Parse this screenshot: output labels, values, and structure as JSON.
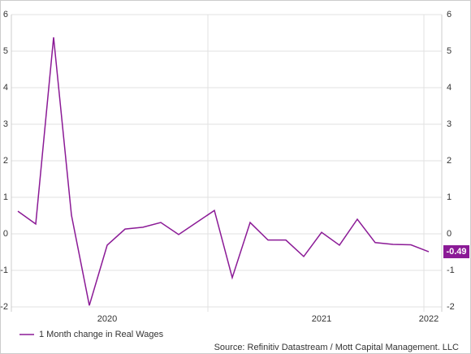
{
  "chart_data": {
    "type": "line",
    "categories": [
      null,
      null,
      null,
      null,
      null,
      "2020",
      null,
      null,
      null,
      null,
      null,
      null,
      null,
      null,
      null,
      null,
      null,
      "2021",
      null,
      null,
      null,
      null,
      null,
      "2022"
    ],
    "series": [
      {
        "name": "1 Month change in Real Wages",
        "color": "#8b1a96",
        "values": [
          0.62,
          0.27,
          5.38,
          0.51,
          -1.96,
          -0.31,
          0.13,
          0.18,
          0.31,
          -0.02,
          0.31,
          0.64,
          -1.2,
          0.31,
          -0.17,
          -0.17,
          -0.62,
          0.04,
          -0.31,
          0.4,
          -0.24,
          -0.29,
          -0.3,
          -0.49
        ]
      }
    ],
    "ylim": [
      -2,
      6
    ],
    "yticks": [
      -2,
      -1,
      0,
      1,
      2,
      3,
      4,
      5,
      6
    ],
    "y2lim": [
      -2,
      6
    ],
    "y2ticks": [
      -2,
      -1,
      0,
      1,
      2,
      3,
      4,
      5,
      6
    ],
    "grid": true,
    "source": "Source: Refinitiv Datastream / Mott Capital Management. LLC"
  }
}
